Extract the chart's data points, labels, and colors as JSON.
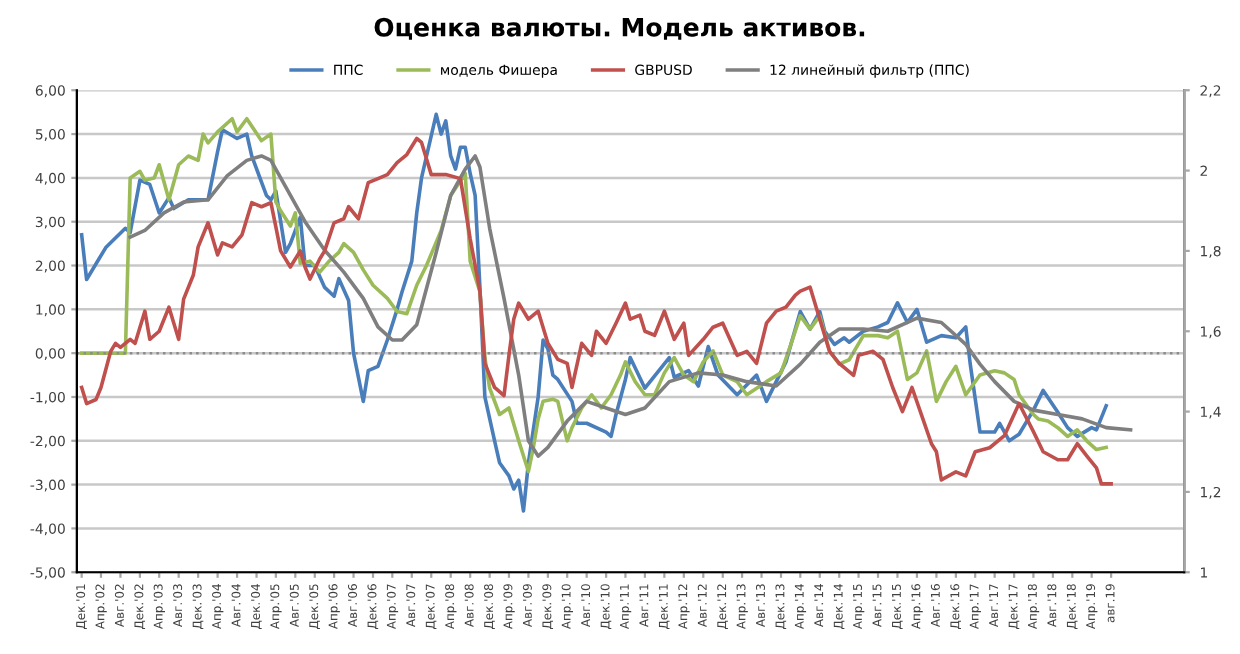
{
  "chart_data": {
    "type": "line",
    "title": "Оценка валюты. Модель активов.",
    "legend": "top",
    "grid": "y",
    "marker": "none",
    "line_style": "solid",
    "xlim": [
      "2001-11",
      "2020-11"
    ],
    "xticks": [
      {
        "value": "2001-12",
        "label": "Дек.'01"
      },
      {
        "value": "2002-04",
        "label": "Апр.'02"
      },
      {
        "value": "2002-08",
        "label": "Авг.'02"
      },
      {
        "value": "2002-12",
        "label": "Дек.'02"
      },
      {
        "value": "2003-04",
        "label": "Апр.'03"
      },
      {
        "value": "2003-08",
        "label": "Авг.'03"
      },
      {
        "value": "2003-12",
        "label": "Дек.'03"
      },
      {
        "value": "2004-04",
        "label": "Апр.'04"
      },
      {
        "value": "2004-08",
        "label": "Авг.'04"
      },
      {
        "value": "2004-12",
        "label": "Дек.'04"
      },
      {
        "value": "2005-04",
        "label": "Апр.'05"
      },
      {
        "value": "2005-08",
        "label": "Авг.'05"
      },
      {
        "value": "2005-12",
        "label": "Дек.'05"
      },
      {
        "value": "2006-04",
        "label": "Апр.'06"
      },
      {
        "value": "2006-08",
        "label": "Авг.'06"
      },
      {
        "value": "2006-12",
        "label": "Дек.'06"
      },
      {
        "value": "2007-04",
        "label": "Апр.'07"
      },
      {
        "value": "2007-08",
        "label": "Авг.'07"
      },
      {
        "value": "2007-12",
        "label": "Дек.'07"
      },
      {
        "value": "2008-04",
        "label": "Апр.'08"
      },
      {
        "value": "2008-08",
        "label": "Авг.'08"
      },
      {
        "value": "2008-12",
        "label": "Дек.'08"
      },
      {
        "value": "2009-04",
        "label": "Апр.'09"
      },
      {
        "value": "2009-08",
        "label": "Авг.'09"
      },
      {
        "value": "2009-12",
        "label": "Дек.'09"
      },
      {
        "value": "2010-04",
        "label": "Апр.'10"
      },
      {
        "value": "2010-08",
        "label": "Авг.'10"
      },
      {
        "value": "2010-12",
        "label": "Дек.'10"
      },
      {
        "value": "2011-04",
        "label": "Апр.'11"
      },
      {
        "value": "2011-08",
        "label": "Авг.'11"
      },
      {
        "value": "2011-12",
        "label": "Дек.'11"
      },
      {
        "value": "2012-04",
        "label": "Апр.'12"
      },
      {
        "value": "2012-08",
        "label": "Авг.'12"
      },
      {
        "value": "2012-12",
        "label": "Дек.'12"
      },
      {
        "value": "2013-04",
        "label": "Апр.'13"
      },
      {
        "value": "2013-08",
        "label": "Авг.'13"
      },
      {
        "value": "2013-12",
        "label": "Дек.'13"
      },
      {
        "value": "2014-04",
        "label": "Апр.'14"
      },
      {
        "value": "2014-08",
        "label": "Авг.'14"
      },
      {
        "value": "2014-12",
        "label": "Дек.'14"
      },
      {
        "value": "2015-04",
        "label": "Апр.'15"
      },
      {
        "value": "2015-08",
        "label": "Авг.'15"
      },
      {
        "value": "2015-12",
        "label": "Дек.'15"
      },
      {
        "value": "2016-04",
        "label": "Апр.'16"
      },
      {
        "value": "2016-08",
        "label": "Авг.'16"
      },
      {
        "value": "2016-12",
        "label": "Дек.'16"
      },
      {
        "value": "2017-04",
        "label": "Апр.'17"
      },
      {
        "value": "2017-08",
        "label": "Авг.'17"
      },
      {
        "value": "2017-12",
        "label": "Дек.'17"
      },
      {
        "value": "2018-04",
        "label": "Апр.'18"
      },
      {
        "value": "2018-08",
        "label": "Авг.'18"
      },
      {
        "value": "2018-12",
        "label": "Дек.'18"
      },
      {
        "value": "2019-04",
        "label": "Апр.'19"
      },
      {
        "value": "2019-08",
        "label": "авг.19"
      }
    ],
    "ylim": [
      -5,
      6
    ],
    "yticks": [
      {
        "value": -5,
        "label": "-5,00"
      },
      {
        "value": -4,
        "label": "-4,00"
      },
      {
        "value": -3,
        "label": "-3,00"
      },
      {
        "value": -2,
        "label": "-2,00"
      },
      {
        "value": -1,
        "label": "-1,00"
      },
      {
        "value": 0,
        "label": "0,00"
      },
      {
        "value": 1,
        "label": "1,00"
      },
      {
        "value": 2,
        "label": "2,00"
      },
      {
        "value": 3,
        "label": "3,00"
      },
      {
        "value": 4,
        "label": "4,00"
      },
      {
        "value": 5,
        "label": "5,00"
      },
      {
        "value": 6,
        "label": "6,00"
      }
    ],
    "y2lim": [
      1,
      2.2
    ],
    "y2ticks": [
      1,
      {
        "value": 1.2,
        "label": "1,2"
      },
      {
        "value": 1.4,
        "label": "1,4"
      },
      {
        "value": 1.6,
        "label": "1,6"
      },
      {
        "value": 1.8,
        "label": "1,8"
      },
      2,
      {
        "value": 2.2,
        "label": "2,2"
      }
    ],
    "ref_lines": [
      {
        "axis": "y",
        "value": 0,
        "color": "#8c8c8c",
        "line_style": "dotted"
      }
    ],
    "series": [
      {
        "name": "ППС",
        "color": "#4a7ebb",
        "x": [
          "2001-12",
          "2002-01",
          "2002-05",
          "2002-09",
          "2002-10",
          "2002-12",
          "2003-02",
          "2003-04",
          "2003-06",
          "2003-07",
          "2003-10",
          "2004-02",
          "2004-04",
          "2004-05",
          "2004-08",
          "2004-10",
          "2004-11",
          "2005-02",
          "2005-03",
          "2005-04",
          "2005-06",
          "2005-07",
          "2005-09",
          "2005-10",
          "2005-12",
          "2006-02",
          "2006-04",
          "2006-05",
          "2006-07",
          "2006-08",
          "2006-10",
          "2006-11",
          "2007-01",
          "2007-03",
          "2007-05",
          "2007-06",
          "2007-08",
          "2007-09",
          "2007-10",
          "2008-01",
          "2008-02",
          "2008-03",
          "2008-04",
          "2008-05",
          "2008-06",
          "2008-07",
          "2008-08",
          "2008-09",
          "2008-10",
          "2008-11",
          "2009-01",
          "2009-02",
          "2009-04",
          "2009-05",
          "2009-06",
          "2009-07",
          "2009-08",
          "2009-10",
          "2009-11",
          "2009-12",
          "2010-01",
          "2010-02",
          "2010-05",
          "2010-06",
          "2010-08",
          "2010-12",
          "2011-01",
          "2011-02",
          "2011-04",
          "2011-05",
          "2011-08",
          "2012-01",
          "2012-02",
          "2012-05",
          "2012-07",
          "2012-09",
          "2012-11",
          "2013-03",
          "2013-07",
          "2013-09",
          "2014-01",
          "2014-02",
          "2014-04",
          "2014-06",
          "2014-08",
          "2014-09",
          "2014-11",
          "2015-01",
          "2015-02",
          "2015-05",
          "2015-08",
          "2015-10",
          "2015-12",
          "2016-02",
          "2016-04",
          "2016-06",
          "2016-09",
          "2016-12",
          "2017-02",
          "2017-03",
          "2017-05",
          "2017-08",
          "2017-09",
          "2017-11",
          "2018-01",
          "2018-04",
          "2018-06",
          "2018-09",
          "2018-11",
          "2019-01",
          "2019-04",
          "2019-05",
          "2019-07"
        ],
        "values": [
          2.7,
          1.68,
          2.41,
          2.85,
          2.75,
          3.95,
          3.85,
          3.2,
          3.55,
          3.3,
          3.5,
          3.5,
          4.6,
          5.1,
          4.9,
          5.0,
          4.5,
          3.6,
          3.5,
          3.7,
          2.3,
          2.5,
          3.1,
          2.0,
          2.0,
          1.5,
          1.3,
          1.7,
          1.2,
          0.0,
          -1.1,
          -0.4,
          -0.3,
          0.3,
          1.0,
          1.4,
          2.1,
          3.2,
          4.0,
          5.45,
          5.0,
          5.3,
          4.5,
          4.2,
          4.7,
          4.7,
          4.1,
          3.6,
          1.5,
          -1.0,
          -2.0,
          -2.5,
          -2.8,
          -3.1,
          -2.9,
          -3.6,
          -2.5,
          -1.0,
          0.3,
          0.1,
          -0.5,
          -0.6,
          -1.1,
          -1.6,
          -1.6,
          -1.8,
          -1.9,
          -1.4,
          -0.6,
          -0.1,
          -0.8,
          -0.1,
          -0.55,
          -0.4,
          -0.75,
          0.15,
          -0.5,
          -0.95,
          -0.5,
          -1.1,
          -0.2,
          0.2,
          0.95,
          0.55,
          0.95,
          0.5,
          0.2,
          0.35,
          0.25,
          0.5,
          0.6,
          0.7,
          1.15,
          0.7,
          1.0,
          0.25,
          0.4,
          0.35,
          0.6,
          -0.25,
          -1.8,
          -1.8,
          -1.6,
          -2.0,
          -1.85,
          -1.3,
          -0.85,
          -1.35,
          -1.7,
          -1.9,
          -1.7,
          -1.75,
          -1.2
        ]
      },
      {
        "name": "модель Фишера",
        "color": "#9bbb59",
        "x": [
          "2001-12",
          "2002-09",
          "2002-10",
          "2002-12",
          "2003-01",
          "2003-03",
          "2003-04",
          "2003-06",
          "2003-08",
          "2003-10",
          "2003-12",
          "2004-01",
          "2004-02",
          "2004-04",
          "2004-07",
          "2004-08",
          "2004-10",
          "2005-01",
          "2005-03",
          "2005-04",
          "2005-05",
          "2005-07",
          "2005-08",
          "2005-09",
          "2005-11",
          "2006-01",
          "2006-03",
          "2006-05",
          "2006-06",
          "2006-08",
          "2006-10",
          "2006-12",
          "2007-03",
          "2007-05",
          "2007-07",
          "2007-09",
          "2007-11",
          "2008-02",
          "2008-04",
          "2008-07",
          "2008-08",
          "2008-10",
          "2008-11",
          "2008-12",
          "2009-02",
          "2009-04",
          "2009-06",
          "2009-08",
          "2009-09",
          "2009-10",
          "2009-11",
          "2010-01",
          "2010-02",
          "2010-04",
          "2010-05",
          "2010-07",
          "2010-09",
          "2010-11",
          "2011-01",
          "2011-03",
          "2011-04",
          "2011-06",
          "2011-08",
          "2011-10",
          "2011-12",
          "2012-02",
          "2012-04",
          "2012-06",
          "2012-08",
          "2012-10",
          "2012-12",
          "2013-03",
          "2013-05",
          "2013-09",
          "2013-12",
          "2014-02",
          "2014-04",
          "2014-06",
          "2014-08",
          "2014-10",
          "2014-12",
          "2015-02",
          "2015-05",
          "2015-08",
          "2015-10",
          "2015-12",
          "2016-02",
          "2016-04",
          "2016-06",
          "2016-08",
          "2016-10",
          "2016-12",
          "2017-02",
          "2017-05",
          "2017-08",
          "2017-10",
          "2017-12",
          "2018-01",
          "2018-04",
          "2018-05",
          "2018-07",
          "2018-09",
          "2018-11",
          "2019-01",
          "2019-03",
          "2019-05",
          "2019-07"
        ],
        "values": [
          0,
          0,
          4.0,
          4.15,
          3.95,
          4.0,
          4.3,
          3.5,
          4.3,
          4.5,
          4.4,
          5.0,
          4.8,
          5.05,
          5.35,
          5.05,
          5.35,
          4.85,
          5.0,
          3.45,
          3.25,
          2.9,
          3.2,
          2.05,
          2.1,
          1.85,
          2.1,
          2.3,
          2.5,
          2.3,
          1.9,
          1.55,
          1.25,
          0.95,
          0.9,
          1.55,
          2.0,
          2.8,
          3.6,
          4.1,
          2.1,
          1.4,
          -0.1,
          -0.8,
          -1.4,
          -1.25,
          -2.0,
          -2.7,
          -2.15,
          -1.5,
          -1.1,
          -1.05,
          -1.1,
          -2.0,
          -1.7,
          -1.25,
          -0.95,
          -1.25,
          -0.95,
          -0.5,
          -0.2,
          -0.65,
          -0.95,
          -0.95,
          -0.45,
          -0.1,
          -0.5,
          -0.65,
          -0.2,
          0.05,
          -0.5,
          -0.65,
          -0.95,
          -0.65,
          -0.45,
          0.2,
          0.85,
          0.55,
          0.85,
          0.05,
          -0.25,
          -0.15,
          0.4,
          0.4,
          0.35,
          0.5,
          -0.6,
          -0.45,
          0.05,
          -1.1,
          -0.65,
          -0.3,
          -0.95,
          -0.5,
          -0.4,
          -0.45,
          -0.6,
          -0.95,
          -1.4,
          -1.5,
          -1.55,
          -1.7,
          -1.9,
          -1.75,
          -2.0,
          -2.2,
          -2.15
        ]
      },
      {
        "name": "GBPUSD",
        "color": "#c0504d",
        "axis": "y2",
        "x": [
          "2001-12",
          "2002-01",
          "2002-03",
          "2002-04",
          "2002-06",
          "2002-07",
          "2002-08",
          "2002-10",
          "2002-11",
          "2003-01",
          "2003-02",
          "2003-04",
          "2003-06",
          "2003-08",
          "2003-09",
          "2003-11",
          "2003-12",
          "2004-02",
          "2004-04",
          "2004-05",
          "2004-07",
          "2004-09",
          "2004-11",
          "2005-01",
          "2005-03",
          "2005-04",
          "2005-05",
          "2005-07",
          "2005-09",
          "2005-10",
          "2005-11",
          "2006-01",
          "2006-02",
          "2006-04",
          "2006-06",
          "2006-07",
          "2006-09",
          "2006-11",
          "2007-01",
          "2007-03",
          "2007-05",
          "2007-07",
          "2007-09",
          "2007-10",
          "2007-12",
          "2008-03",
          "2008-06",
          "2008-08",
          "2008-10",
          "2008-11",
          "2009-01",
          "2009-03",
          "2009-04",
          "2009-05",
          "2009-06",
          "2009-08",
          "2009-10",
          "2009-12",
          "2010-02",
          "2010-04",
          "2010-05",
          "2010-07",
          "2010-09",
          "2010-10",
          "2010-12",
          "2011-02",
          "2011-04",
          "2011-05",
          "2011-07",
          "2011-08",
          "2011-10",
          "2011-12",
          "2012-02",
          "2012-04",
          "2012-05",
          "2012-08",
          "2012-10",
          "2012-12",
          "2013-03",
          "2013-05",
          "2013-07",
          "2013-09",
          "2013-11",
          "2014-01",
          "2014-03",
          "2014-04",
          "2014-06",
          "2014-08",
          "2014-10",
          "2014-12",
          "2015-03",
          "2015-04",
          "2015-07",
          "2015-09",
          "2015-11",
          "2016-01",
          "2016-03",
          "2016-05",
          "2016-07",
          "2016-08",
          "2016-09",
          "2016-12",
          "2017-02",
          "2017-04",
          "2017-07",
          "2017-10",
          "2018-01",
          "2018-04",
          "2018-06",
          "2018-09",
          "2018-11",
          "2019-01",
          "2019-03",
          "2019-05",
          "2019-06",
          "2019-08"
        ],
        "values": [
          1.46,
          1.42,
          1.43,
          1.46,
          1.55,
          1.57,
          1.56,
          1.58,
          1.57,
          1.65,
          1.58,
          1.6,
          1.66,
          1.58,
          1.68,
          1.74,
          1.81,
          1.87,
          1.79,
          1.82,
          1.81,
          1.84,
          1.92,
          1.91,
          1.92,
          1.86,
          1.8,
          1.76,
          1.8,
          1.76,
          1.73,
          1.78,
          1.8,
          1.87,
          1.88,
          1.91,
          1.88,
          1.97,
          1.98,
          1.99,
          2.02,
          2.04,
          2.08,
          2.07,
          1.99,
          1.99,
          1.98,
          1.83,
          1.7,
          1.52,
          1.46,
          1.44,
          1.54,
          1.63,
          1.67,
          1.63,
          1.65,
          1.57,
          1.53,
          1.52,
          1.46,
          1.57,
          1.54,
          1.6,
          1.57,
          1.62,
          1.67,
          1.63,
          1.64,
          1.6,
          1.59,
          1.65,
          1.58,
          1.62,
          1.54,
          1.58,
          1.61,
          1.62,
          1.54,
          1.55,
          1.52,
          1.62,
          1.65,
          1.66,
          1.69,
          1.7,
          1.71,
          1.63,
          1.55,
          1.52,
          1.49,
          1.54,
          1.55,
          1.53,
          1.46,
          1.4,
          1.46,
          1.39,
          1.32,
          1.3,
          1.23,
          1.25,
          1.24,
          1.3,
          1.31,
          1.34,
          1.42,
          1.35,
          1.3,
          1.28,
          1.28,
          1.32,
          1.29,
          1.26,
          1.22,
          1.22
        ]
      },
      {
        "name": "12 линейный фильтр (ППС)",
        "color": "#7f7f7f",
        "x": [
          "2002-10",
          "2003-01",
          "2003-05",
          "2003-09",
          "2004-02",
          "2004-06",
          "2004-10",
          "2005-01",
          "2005-03",
          "2005-06",
          "2005-10",
          "2006-02",
          "2006-06",
          "2006-10",
          "2007-01",
          "2007-04",
          "2007-06",
          "2007-09",
          "2008-01",
          "2008-04",
          "2008-07",
          "2008-09",
          "2008-10",
          "2008-12",
          "2009-03",
          "2009-06",
          "2009-08",
          "2009-10",
          "2009-12",
          "2010-04",
          "2010-08",
          "2010-12",
          "2011-04",
          "2011-08",
          "2012-01",
          "2012-07",
          "2012-12",
          "2013-05",
          "2013-11",
          "2014-04",
          "2014-08",
          "2014-12",
          "2015-05",
          "2015-10",
          "2016-04",
          "2016-09",
          "2017-02",
          "2017-05",
          "2017-08",
          "2017-12",
          "2018-04",
          "2018-09",
          "2019-02",
          "2019-07",
          "2019-12"
        ],
        "values": [
          2.65,
          2.8,
          3.2,
          3.45,
          3.5,
          4.05,
          4.4,
          4.5,
          4.4,
          3.8,
          3.0,
          2.35,
          1.85,
          1.25,
          0.6,
          0.3,
          0.3,
          0.65,
          2.3,
          3.6,
          4.2,
          4.5,
          4.25,
          2.85,
          1.25,
          -0.5,
          -2.0,
          -2.35,
          -2.15,
          -1.55,
          -1.1,
          -1.25,
          -1.4,
          -1.25,
          -0.65,
          -0.45,
          -0.5,
          -0.65,
          -0.75,
          -0.25,
          0.25,
          0.55,
          0.55,
          0.5,
          0.8,
          0.7,
          0.2,
          -0.25,
          -0.65,
          -1.1,
          -1.3,
          -1.4,
          -1.5,
          -1.7,
          -1.75
        ]
      }
    ]
  }
}
